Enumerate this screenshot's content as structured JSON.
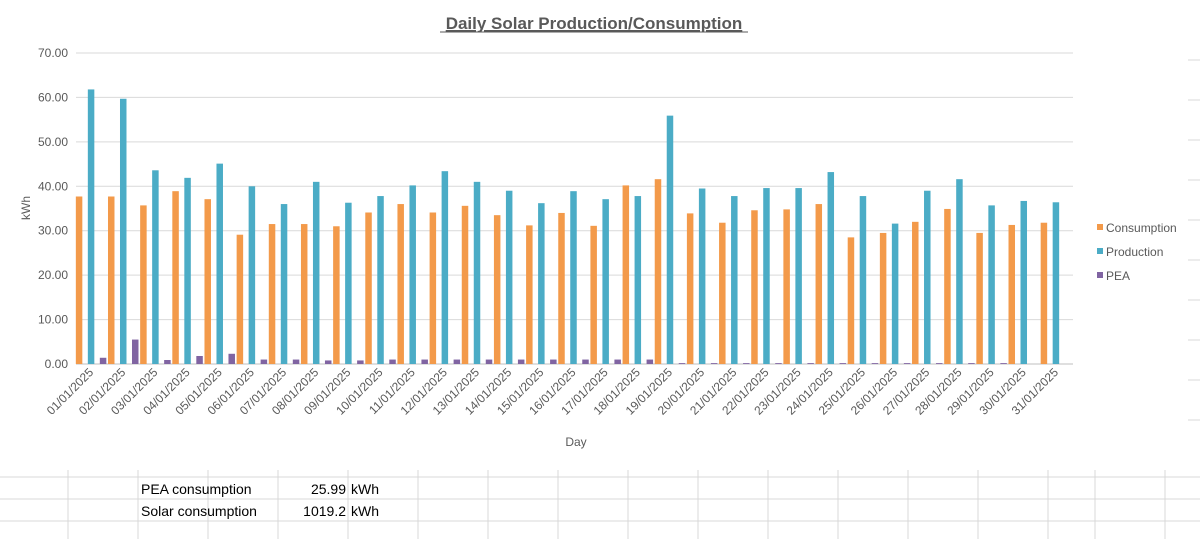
{
  "summary": {
    "rows": [
      {
        "label": "PEA consumption",
        "value": "25.99",
        "unit": "kWh"
      },
      {
        "label": "Solar consumption",
        "value": "1019.2",
        "unit": "kWh"
      }
    ]
  },
  "chart_data": {
    "type": "bar",
    "title": "Daily Solar Production/Consumption",
    "xlabel": "Day",
    "ylabel": "kWh",
    "ylim": [
      0,
      70
    ],
    "yticks": [
      "0.00",
      "10.00",
      "20.00",
      "30.00",
      "40.00",
      "50.00",
      "60.00",
      "70.00"
    ],
    "grid": true,
    "legend_position": "right",
    "categories": [
      "01/01/2025",
      "02/01/2025",
      "03/01/2025",
      "04/01/2025",
      "05/01/2025",
      "06/01/2025",
      "07/01/2025",
      "08/01/2025",
      "09/01/2025",
      "10/01/2025",
      "11/01/2025",
      "12/01/2025",
      "13/01/2025",
      "14/01/2025",
      "15/01/2025",
      "16/01/2025",
      "17/01/2025",
      "18/01/2025",
      "19/01/2025",
      "20/01/2025",
      "21/01/2025",
      "22/01/2025",
      "23/01/2025",
      "24/01/2025",
      "25/01/2025",
      "26/01/2025",
      "27/01/2025",
      "28/01/2025",
      "29/01/2025",
      "30/01/2025",
      "31/01/2025"
    ],
    "series": [
      {
        "name": "Consumption",
        "color": "#f39a4a",
        "values": [
          37.7,
          37.7,
          35.7,
          38.9,
          37.1,
          29.1,
          31.5,
          31.5,
          31.0,
          34.1,
          36.0,
          34.1,
          35.6,
          33.5,
          31.2,
          34.0,
          31.1,
          40.2,
          41.6,
          33.9,
          31.8,
          34.6,
          34.8,
          36.0,
          28.5,
          29.5,
          32.0,
          34.9,
          29.5,
          31.3,
          31.8
        ]
      },
      {
        "name": "Production",
        "color": "#4bacc6",
        "values": [
          61.8,
          59.7,
          43.6,
          41.9,
          45.1,
          40.0,
          36.0,
          41.0,
          36.3,
          37.8,
          40.2,
          43.4,
          41.0,
          39.0,
          36.2,
          38.9,
          37.1,
          37.8,
          55.9,
          39.5,
          37.8,
          39.6,
          39.6,
          43.2,
          37.8,
          31.6,
          39.0,
          41.6,
          35.7,
          36.7,
          36.4
        ]
      },
      {
        "name": "PEA",
        "color": "#8064a2",
        "values": [
          1.4,
          5.5,
          0.9,
          1.8,
          2.3,
          1.0,
          1.0,
          0.8,
          0.8,
          1.0,
          1.0,
          1.0,
          1.0,
          1.0,
          1.0,
          1.0,
          1.0,
          1.0,
          0.2,
          0.2,
          0.2,
          0.2,
          0.2,
          0.2,
          0.2,
          0.2,
          0.2,
          0.2,
          0.2,
          0,
          0
        ]
      }
    ]
  }
}
